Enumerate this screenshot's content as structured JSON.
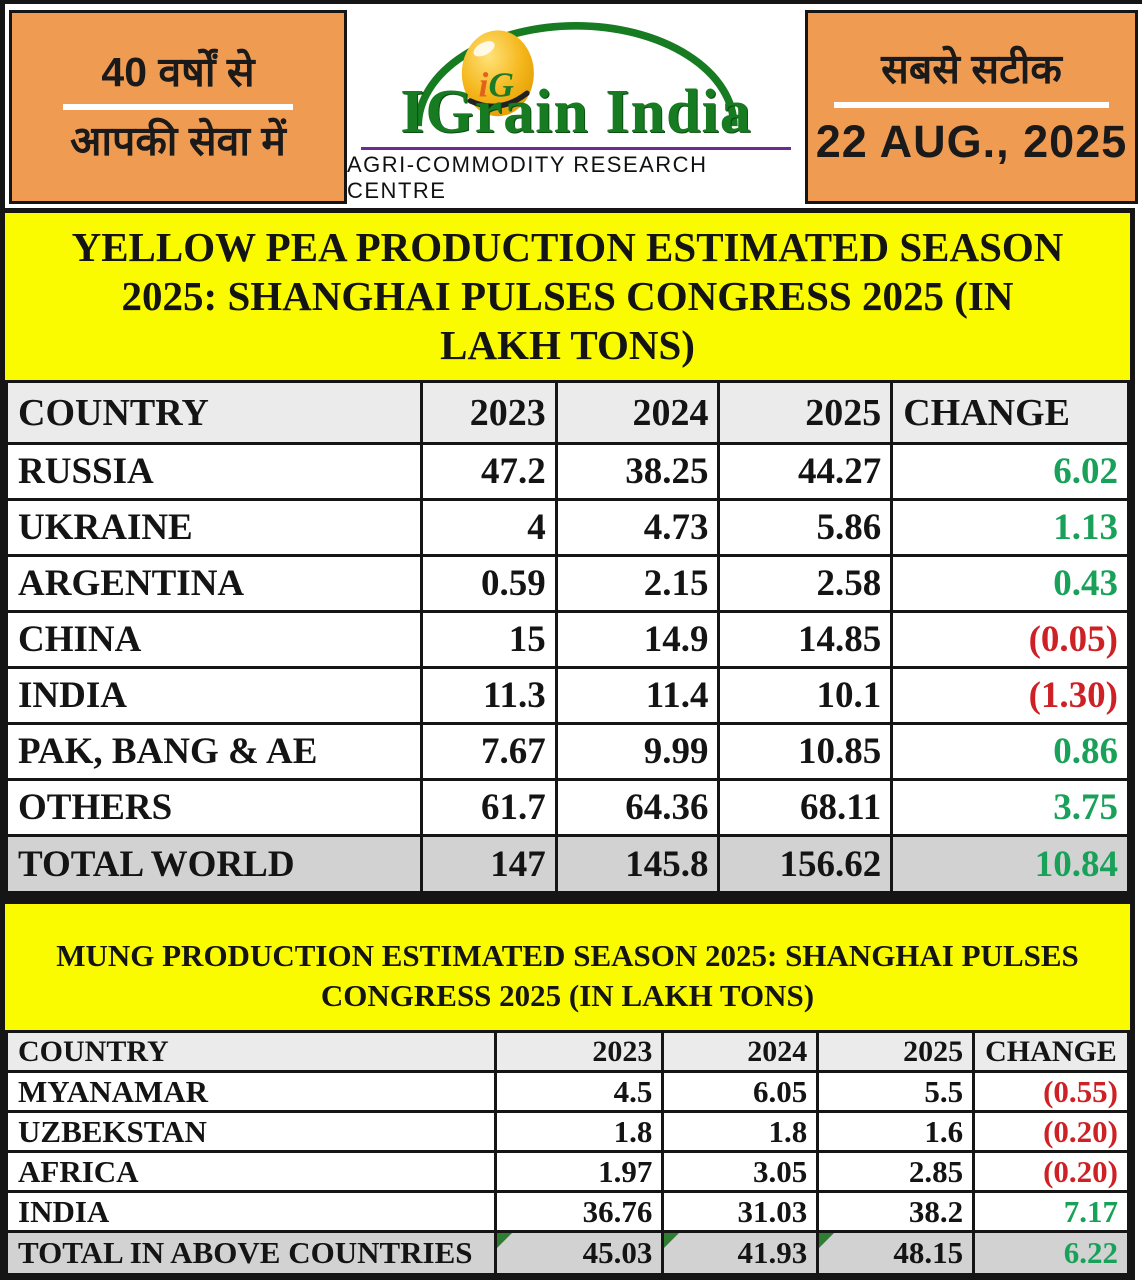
{
  "masthead": {
    "left": {
      "line1": "40 वर्षों से",
      "line2": "आपकी सेवा में"
    },
    "logo": {
      "monogram": "iG",
      "brand": "IGrain India",
      "tagline": "AGRI-COMMODITY RESEARCH CENTRE"
    },
    "right": {
      "line1": "सबसे सटीक",
      "date": "22 AUG., 2025"
    }
  },
  "colors": {
    "orange": "#F09B52",
    "yellow": "#FBFB00",
    "green": "#19A15A",
    "red": "#CE2126",
    "gray_header": "#EBEBEB",
    "gray_total": "#D2D2D2",
    "brand_green": "#177B21",
    "purple": "#6A2C91",
    "tri_green": "#2E7D32",
    "gold": "#F5B81E"
  },
  "chart_data": [
    {
      "type": "table",
      "title": "YELLOW PEA PRODUCTION ESTIMATED SEASON 2025: SHANGHAI PULSES CONGRESS 2025 (IN LAKH TONS)",
      "columns": [
        "COUNTRY",
        "2023",
        "2024",
        "2025",
        "CHANGE"
      ],
      "rows": [
        [
          "RUSSIA",
          "47.2",
          "38.25",
          "44.27",
          "6.02"
        ],
        [
          "UKRAINE",
          "4",
          "4.73",
          "5.86",
          "1.13"
        ],
        [
          "ARGENTINA",
          "0.59",
          "2.15",
          "2.58",
          "0.43"
        ],
        [
          "CHINA",
          "15",
          "14.9",
          "14.85",
          "(0.05)"
        ],
        [
          "INDIA",
          "11.3",
          "11.4",
          "10.1",
          "(1.30)"
        ],
        [
          "PAK, BANG & AE",
          "7.67",
          "9.99",
          "10.85",
          "0.86"
        ],
        [
          "OTHERS",
          "61.7",
          "64.36",
          "68.11",
          "3.75"
        ]
      ],
      "total_row": [
        "TOTAL WORLD",
        "147",
        "145.8",
        "156.62",
        "10.84"
      ],
      "total_corner_marks": false
    },
    {
      "type": "table",
      "title": "MUNG PRODUCTION ESTIMATED SEASON 2025: SHANGHAI PULSES CONGRESS 2025 (IN LAKH TONS)",
      "columns": [
        "COUNTRY",
        "2023",
        "2024",
        "2025",
        "CHANGE"
      ],
      "rows": [
        [
          "MYANAMAR",
          "4.5",
          "6.05",
          "5.5",
          "(0.55)"
        ],
        [
          "UZBEKSTAN",
          "1.8",
          "1.8",
          "1.6",
          "(0.20)"
        ],
        [
          "AFRICA",
          "1.97",
          "3.05",
          "2.85",
          "(0.20)"
        ],
        [
          "INDIA",
          "36.76",
          "31.03",
          "38.2",
          "7.17"
        ]
      ],
      "total_row": [
        "TOTAL IN ABOVE COUNTRIES",
        "45.03",
        "41.93",
        "48.15",
        "6.22"
      ],
      "total_corner_marks": true
    }
  ]
}
